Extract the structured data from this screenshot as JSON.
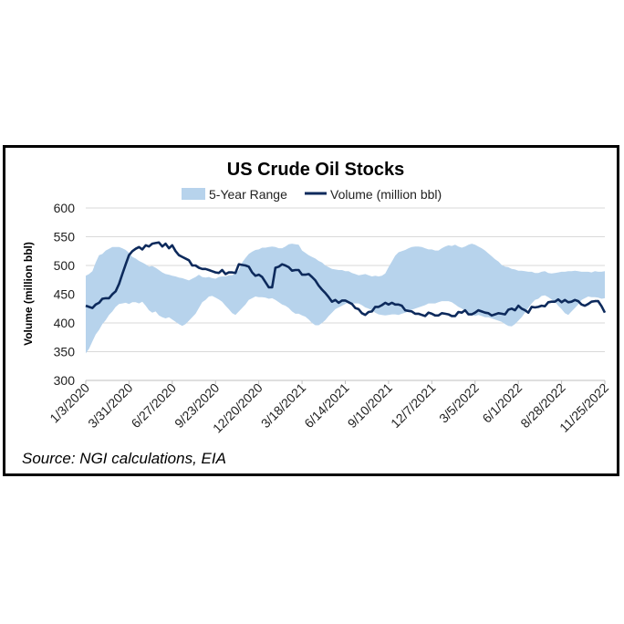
{
  "chart_data": {
    "type": "area",
    "title": "US Crude Oil Stocks",
    "ylabel": "Volume (million bbl)",
    "xlabel": "",
    "ylim": [
      300,
      600
    ],
    "yticks": [
      300,
      350,
      400,
      450,
      500,
      550,
      600
    ],
    "grid": "horizontal",
    "legend_position": "top",
    "xtick_labels": [
      "1/3/2020",
      "3/31/2020",
      "6/27/2020",
      "9/23/2020",
      "12/20/2020",
      "3/18/2021",
      "6/14/2021",
      "9/10/2021",
      "12/7/2021",
      "3/5/2022",
      "6/1/2022",
      "8/28/2022",
      "11/25/2022"
    ],
    "band": {
      "name": "5-Year Range",
      "color": "#b7d3ec",
      "x": [
        0,
        1,
        2,
        3,
        4,
        5,
        6,
        7,
        8,
        9,
        10,
        11,
        12,
        13,
        14,
        15,
        16,
        17,
        18,
        19,
        20,
        21,
        22,
        23,
        24,
        25,
        26,
        27,
        28,
        29,
        30,
        31,
        32,
        33,
        34,
        35,
        36,
        37,
        38,
        39,
        40,
        41,
        42,
        43,
        44,
        45,
        46,
        47,
        48,
        49,
        50,
        51,
        52,
        53,
        54,
        55,
        56,
        57,
        58,
        59,
        60,
        61,
        62,
        63,
        64,
        65,
        66,
        67,
        68,
        69,
        70,
        71,
        72,
        73,
        74,
        75,
        76,
        77,
        78,
        79,
        80,
        81,
        82,
        83,
        84,
        85,
        86,
        87,
        88,
        89,
        90,
        91,
        92,
        93,
        94,
        95,
        96,
        97,
        98,
        99,
        100,
        101,
        102,
        103,
        104,
        105,
        106,
        107,
        108,
        109,
        110,
        111,
        112,
        113,
        114,
        115,
        116,
        117,
        118,
        119,
        120,
        121,
        122,
        123,
        124,
        125,
        126,
        127,
        128,
        129,
        130,
        131,
        132,
        133,
        134,
        135,
        136,
        137,
        138,
        139,
        140,
        141,
        142,
        143,
        144,
        145,
        146,
        147,
        148,
        149,
        150,
        151,
        152,
        153,
        154,
        155,
        156
      ],
      "low": [
        347,
        355,
        368,
        380,
        388,
        398,
        405,
        414,
        420,
        428,
        433,
        434,
        435,
        433,
        436,
        436,
        434,
        437,
        430,
        422,
        418,
        420,
        413,
        410,
        408,
        410,
        406,
        402,
        398,
        395,
        398,
        404,
        410,
        416,
        426,
        436,
        440,
        446,
        447,
        444,
        441,
        437,
        430,
        424,
        417,
        414,
        420,
        426,
        432,
        440,
        443,
        446,
        445,
        445,
        444,
        442,
        443,
        440,
        436,
        432,
        430,
        426,
        420,
        416,
        416,
        413,
        411,
        406,
        400,
        396,
        396,
        400,
        405,
        412,
        418,
        424,
        427,
        430,
        433,
        436,
        434,
        434,
        434,
        431,
        427,
        425,
        422,
        418,
        415,
        414,
        413,
        414,
        415,
        415,
        414,
        416,
        418,
        420,
        423,
        425,
        427,
        429,
        431,
        434,
        434,
        434,
        436,
        438,
        438,
        438,
        436,
        432,
        428,
        425,
        421,
        417,
        414,
        412,
        414,
        412,
        410,
        410,
        408,
        406,
        404,
        402,
        398,
        395,
        394,
        398,
        404,
        410,
        418,
        426,
        434,
        440,
        442,
        447,
        448,
        445,
        441,
        437,
        430,
        424,
        417,
        414,
        420,
        426,
        432,
        440,
        443,
        446,
        445,
        445,
        444,
        442,
        443
      ],
      "high": [
        482,
        485,
        490,
        505,
        518,
        520,
        526,
        529,
        532,
        532,
        532,
        530,
        527,
        522,
        515,
        512,
        508,
        505,
        502,
        498,
        499,
        496,
        492,
        488,
        485,
        484,
        482,
        481,
        479,
        478,
        476,
        474,
        477,
        480,
        484,
        480,
        479,
        480,
        478,
        477,
        480,
        481,
        481,
        483,
        483,
        486,
        492,
        505,
        513,
        520,
        524,
        527,
        528,
        531,
        531,
        532,
        533,
        532,
        530,
        530,
        533,
        537,
        538,
        537,
        536,
        526,
        522,
        518,
        515,
        512,
        508,
        505,
        500,
        497,
        494,
        493,
        492,
        492,
        490,
        490,
        487,
        485,
        483,
        484,
        485,
        483,
        481,
        482,
        481,
        482,
        486,
        497,
        507,
        517,
        523,
        525,
        527,
        530,
        532,
        533,
        533,
        532,
        530,
        528,
        528,
        526,
        526,
        530,
        533,
        535,
        534,
        536,
        533,
        531,
        533,
        536,
        538,
        536,
        533,
        530,
        526,
        521,
        516,
        511,
        507,
        501,
        498,
        497,
        494,
        493,
        491,
        491,
        490,
        489,
        489,
        487,
        487,
        489,
        490,
        487,
        486,
        487,
        488,
        489,
        489,
        490,
        490,
        491,
        490,
        489,
        489,
        489,
        488,
        490,
        489,
        489,
        490
      ]
    },
    "series": [
      {
        "name": "Volume (million bbl)",
        "color": "#0d2a5c",
        "x": [
          0,
          1,
          2,
          3,
          4,
          5,
          6,
          7,
          8,
          9,
          10,
          11,
          12,
          13,
          14,
          15,
          16,
          17,
          18,
          19,
          20,
          21,
          22,
          23,
          24,
          25,
          26,
          27,
          28,
          29,
          30,
          31,
          32,
          33,
          34,
          35,
          36,
          37,
          38,
          39,
          40,
          41,
          42,
          43,
          44,
          45,
          46,
          47,
          48,
          49,
          50,
          51,
          52,
          53,
          54,
          55,
          56,
          57,
          58,
          59,
          60,
          61,
          62,
          63,
          64,
          65,
          66,
          67,
          68,
          69,
          70,
          71,
          72,
          73,
          74,
          75,
          76,
          77,
          78,
          79,
          80,
          81,
          82,
          83,
          84,
          85,
          86,
          87,
          88,
          89,
          90,
          91,
          92,
          93,
          94,
          95,
          96,
          97,
          98,
          99,
          100,
          101,
          102,
          103,
          104,
          105,
          106,
          107,
          108,
          109,
          110,
          111,
          112,
          113,
          114,
          115,
          116,
          117,
          118,
          119,
          120,
          121,
          122,
          123,
          124,
          125,
          126,
          127,
          128,
          129,
          130,
          131,
          132,
          133,
          134,
          135,
          136,
          137,
          138,
          139,
          140,
          141,
          142,
          143,
          144,
          145,
          146,
          147,
          148,
          149,
          150,
          151,
          152,
          153,
          154,
          155,
          156
        ],
        "values": [
          430,
          428,
          426,
          432,
          435,
          442,
          443,
          443,
          450,
          455,
          468,
          485,
          502,
          518,
          525,
          529,
          532,
          528,
          535,
          533,
          538,
          539,
          540,
          533,
          538,
          530,
          535,
          525,
          518,
          515,
          512,
          509,
          500,
          500,
          496,
          494,
          494,
          492,
          490,
          488,
          487,
          492,
          485,
          488,
          488,
          487,
          502,
          501,
          500,
          498,
          488,
          482,
          484,
          480,
          471,
          462,
          462,
          496,
          498,
          502,
          500,
          497,
          491,
          492,
          492,
          484,
          484,
          485,
          480,
          474,
          465,
          458,
          452,
          445,
          437,
          440,
          435,
          439,
          439,
          436,
          433,
          426,
          424,
          417,
          414,
          419,
          420,
          428,
          428,
          431,
          435,
          432,
          435,
          432,
          432,
          430,
          422,
          421,
          420,
          416,
          416,
          414,
          412,
          418,
          416,
          413,
          413,
          417,
          416,
          415,
          412,
          412,
          419,
          418,
          422,
          415,
          415,
          418,
          422,
          420,
          418,
          417,
          413,
          415,
          417,
          416,
          415,
          423,
          425,
          422,
          430,
          425,
          422,
          418,
          428,
          427,
          428,
          430,
          429,
          436,
          437,
          437,
          441,
          436,
          440,
          436,
          437,
          440,
          438,
          432,
          430,
          433,
          437,
          438,
          438,
          429,
          418
        ]
      }
    ]
  },
  "source": "Source: NGI calculations, EIA"
}
